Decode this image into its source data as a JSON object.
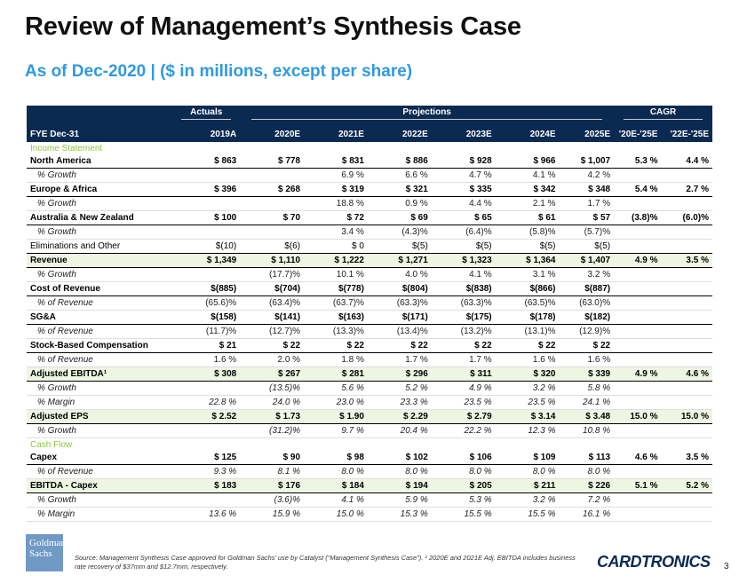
{
  "title": "Review of Management’s Synthesis Case",
  "subtitle": "As of Dec-2020 | ($ in millions, except per share)",
  "table": {
    "groups": {
      "actuals": "Actuals",
      "projections": "Projections",
      "cagr": "CAGR"
    },
    "header": [
      "FYE Dec-31",
      "2019A",
      "2020E",
      "2021E",
      "2022E",
      "2023E",
      "2024E",
      "2025E",
      "'20E-'25E",
      "'22E-'25E"
    ],
    "income_statement_label": "Income Statement",
    "income_rows": [
      {
        "style": "pri",
        "cells": [
          "North America",
          "$ 863",
          "$ 778",
          "$ 831",
          "$ 886",
          "$ 928",
          "$ 966",
          "$ 1,007",
          "5.3 %",
          "4.4 %"
        ]
      },
      {
        "style": "sub",
        "cells": [
          "% Growth",
          "",
          "",
          "6.9 %",
          "6.6 %",
          "4.7 %",
          "4.1 %",
          "4.2 %",
          "",
          ""
        ]
      },
      {
        "style": "pri",
        "cells": [
          "Europe & Africa",
          "$ 396",
          "$ 268",
          "$ 319",
          "$ 321",
          "$ 335",
          "$ 342",
          "$ 348",
          "5.4 %",
          "2.7 %"
        ]
      },
      {
        "style": "sub",
        "cells": [
          "% Growth",
          "",
          "",
          "18.8 %",
          "0.9 %",
          "4.4 %",
          "2.1 %",
          "1.7 %",
          "",
          ""
        ]
      },
      {
        "style": "pri",
        "cells": [
          "Australia & New Zealand",
          "$ 100",
          "$ 70",
          "$ 72",
          "$ 69",
          "$ 65",
          "$ 61",
          "$ 57",
          "(3.8)%",
          "(6.0)%"
        ]
      },
      {
        "style": "sub",
        "cells": [
          "% Growth",
          "",
          "",
          "3.4 %",
          "(4.3)%",
          "(6.4)%",
          "(5.8)%",
          "(5.7)%",
          "",
          ""
        ]
      },
      {
        "style": "plain",
        "cells": [
          "Eliminations and Other",
          "$(10)",
          "$(6)",
          "$ 0",
          "$(5)",
          "$(5)",
          "$(5)",
          "$(5)",
          "",
          ""
        ]
      },
      {
        "style": "hl",
        "cells": [
          "Revenue",
          "$ 1,349",
          "$ 1,110",
          "$ 1,222",
          "$ 1,271",
          "$ 1,323",
          "$ 1,364",
          "$ 1,407",
          "4.9 %",
          "3.5 %"
        ]
      },
      {
        "style": "sub",
        "cells": [
          "% Growth",
          "",
          "(17.7)%",
          "10.1 %",
          "4.0 %",
          "4.1 %",
          "3.1 %",
          "3.2 %",
          "",
          ""
        ]
      },
      {
        "style": "pri",
        "cells": [
          "Cost of Revenue",
          "$(885)",
          "$(704)",
          "$(778)",
          "$(804)",
          "$(838)",
          "$(866)",
          "$(887)",
          "",
          ""
        ]
      },
      {
        "style": "sub",
        "cells": [
          "% of Revenue",
          "(65.6)%",
          "(63.4)%",
          "(63.7)%",
          "(63.3)%",
          "(63.3)%",
          "(63.5)%",
          "(63.0)%",
          "",
          ""
        ]
      },
      {
        "style": "pri",
        "cells": [
          "SG&A",
          "$(158)",
          "$(141)",
          "$(163)",
          "$(171)",
          "$(175)",
          "$(178)",
          "$(182)",
          "",
          ""
        ]
      },
      {
        "style": "sub",
        "cells": [
          "% of Revenue",
          "(11.7)%",
          "(12.7)%",
          "(13.3)%",
          "(13.4)%",
          "(13.2)%",
          "(13.1)%",
          "(12.9)%",
          "",
          ""
        ]
      },
      {
        "style": "pri",
        "cells": [
          "Stock-Based Compensation",
          "$ 21",
          "$ 22",
          "$ 22",
          "$ 22",
          "$ 22",
          "$ 22",
          "$ 22",
          "",
          ""
        ]
      },
      {
        "style": "sub",
        "cells": [
          "% of Revenue",
          "1.6 %",
          "2.0 %",
          "1.8 %",
          "1.7 %",
          "1.7 %",
          "1.6 %",
          "1.6 %",
          "",
          ""
        ]
      },
      {
        "style": "hl",
        "cells": [
          "Adjusted EBITDA¹",
          "$ 308",
          "$ 267",
          "$ 281",
          "$ 296",
          "$ 311",
          "$ 320",
          "$ 339",
          "4.9 %",
          "4.6 %"
        ]
      },
      {
        "style": "sub ital",
        "cells": [
          "% Growth",
          "",
          "(13.5)%",
          "5.6 %",
          "5.2 %",
          "4.9 %",
          "3.2 %",
          "5.8 %",
          "",
          ""
        ]
      },
      {
        "style": "sub ital",
        "cells": [
          "% Margin",
          "22.8 %",
          "24.0 %",
          "23.0 %",
          "23.3 %",
          "23.5 %",
          "23.5 %",
          "24.1 %",
          "",
          ""
        ]
      },
      {
        "style": "hl",
        "cells": [
          "Adjusted EPS",
          "$ 2.52",
          "$ 1.73",
          "$ 1.90",
          "$ 2.29",
          "$ 2.79",
          "$ 3.14",
          "$ 3.48",
          "15.0 %",
          "15.0 %"
        ]
      },
      {
        "style": "sub ital",
        "cells": [
          "% Growth",
          "",
          "(31.2)%",
          "9.7 %",
          "20.4 %",
          "22.2 %",
          "12.3 %",
          "10.8 %",
          "",
          ""
        ]
      }
    ],
    "cash_flow_label": "Cash Flow",
    "cash_rows": [
      {
        "style": "pri",
        "cells": [
          "Capex",
          "$ 125",
          "$ 90",
          "$ 98",
          "$ 102",
          "$ 106",
          "$ 109",
          "$ 113",
          "4.6 %",
          "3.5 %"
        ]
      },
      {
        "style": "sub ital",
        "cells": [
          "% of Revenue",
          "9.3 %",
          "8.1 %",
          "8.0 %",
          "8.0 %",
          "8.0 %",
          "8.0 %",
          "8.0 %",
          "",
          ""
        ]
      },
      {
        "style": "hl",
        "cells": [
          "EBITDA - Capex",
          "$ 183",
          "$ 176",
          "$ 184",
          "$ 194",
          "$ 205",
          "$ 211",
          "$ 226",
          "5.1 %",
          "5.2 %"
        ]
      },
      {
        "style": "sub ital",
        "cells": [
          "% Growth",
          "",
          "(3.6)%",
          "4.1 %",
          "5.9 %",
          "5.3 %",
          "3.2 %",
          "7.2 %",
          "",
          ""
        ]
      },
      {
        "style": "sub ital",
        "cells": [
          "% Margin",
          "13.6 %",
          "15.9 %",
          "15.0 %",
          "15.3 %",
          "15.5 %",
          "15.5 %",
          "16.1 %",
          "",
          ""
        ]
      }
    ]
  },
  "footer": {
    "gs_logo_line1": "Goldman",
    "gs_logo_line2": "Sachs",
    "source": "Source: Management Synthesis Case approved for Goldman Sachs’ use by Catalyst (“Management Synthesis Case”). ¹ 2020E and 2021E Adj. EBITDA includes business rate recovery of $37mm and $12.7mm, respectively.",
    "company_logo_main": "CARDTRONICS",
    "page_number": "3"
  },
  "colors": {
    "navy": "#0b2a52",
    "accent_blue": "#2f9ae0",
    "section_green": "#8dc63f",
    "highlight_row": "#eef5e2"
  }
}
